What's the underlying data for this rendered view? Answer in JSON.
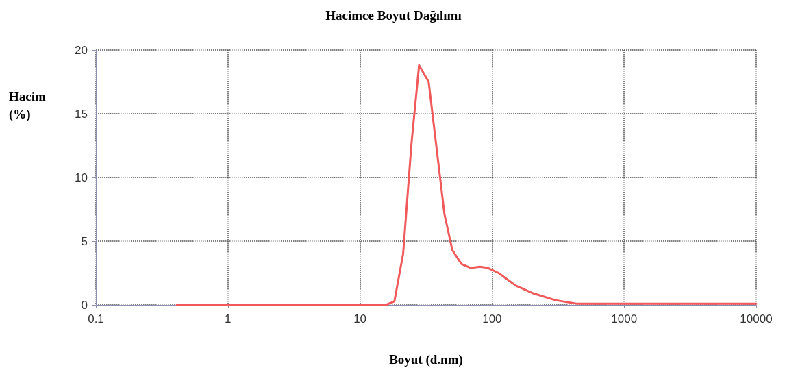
{
  "chart_data": {
    "type": "line",
    "title": "Hacimce Boyut Dağılımı",
    "xlabel": "Boyut (d.nm)",
    "ylabel": "Hacim\n(%)",
    "x": [
      0.41,
      15.7,
      18.2,
      21.2,
      24.5,
      28,
      33.1,
      43.6,
      50,
      58.7,
      69,
      81,
      93,
      112,
      152,
      206,
      302,
      434,
      10000
    ],
    "series": [
      {
        "color": "#f05a5a",
        "values": [
          0,
          0,
          0.27,
          4.0,
          12.6,
          18.8,
          17.5,
          7.1,
          4.3,
          3.2,
          2.9,
          3.0,
          2.9,
          2.5,
          1.5,
          0.9,
          0.37,
          0.1,
          0.1
        ]
      }
    ],
    "log": "x",
    "xlim": [
      0.1,
      10000
    ],
    "xticks": [
      0.1,
      1,
      10,
      100,
      1000,
      10000
    ],
    "ylim": [
      0,
      20
    ],
    "yticks": [
      0,
      5,
      10,
      15,
      20
    ],
    "grid": true,
    "marker": "none",
    "line_style": "solid"
  }
}
